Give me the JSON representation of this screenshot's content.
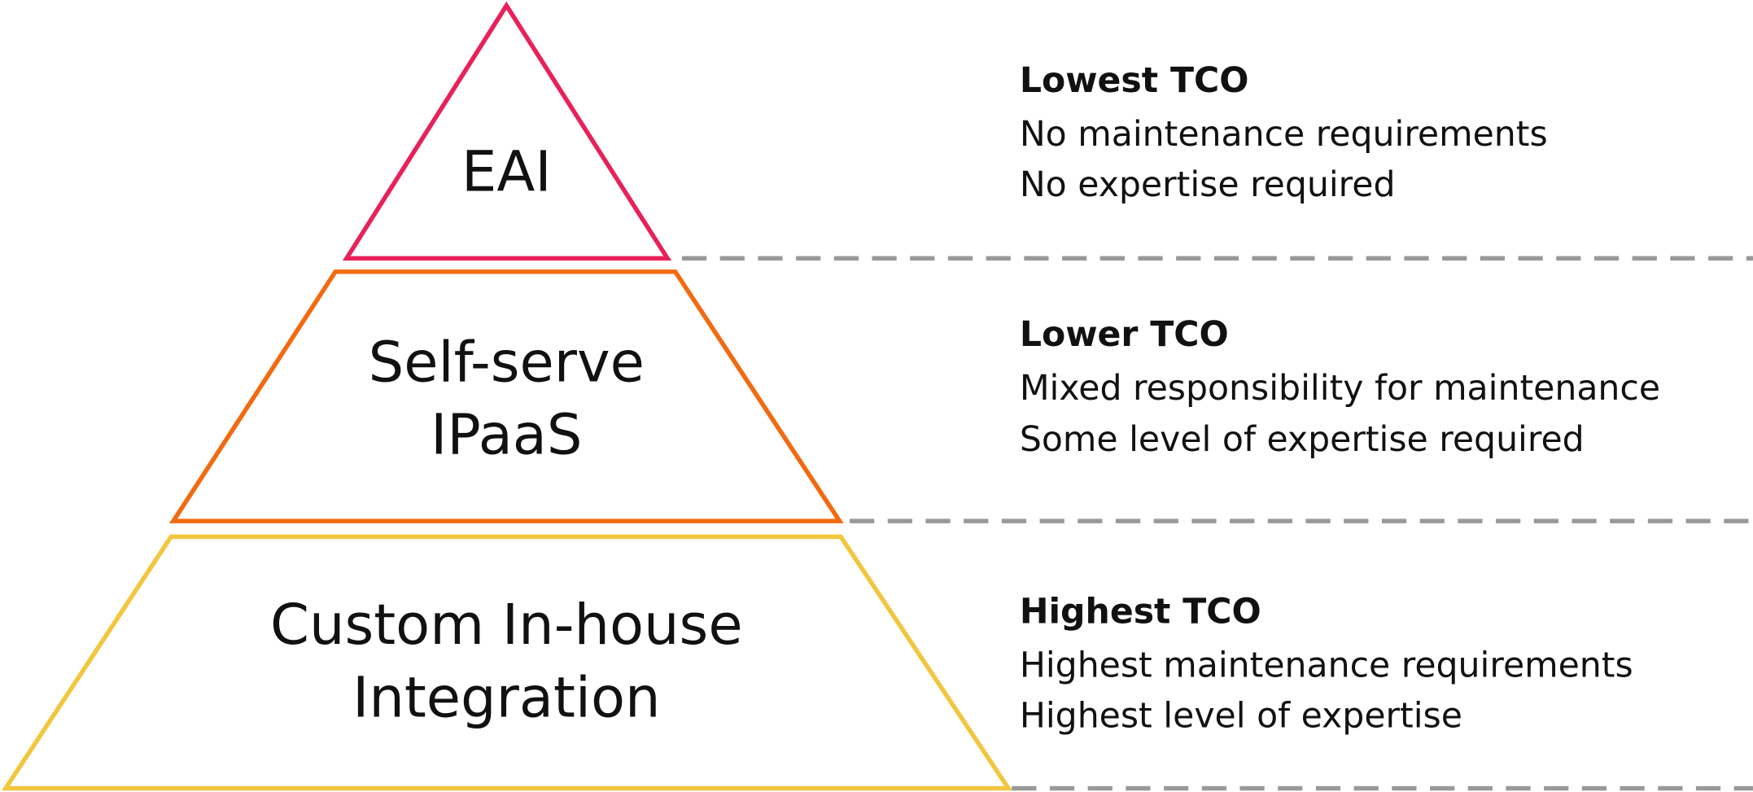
{
  "tiers": [
    {
      "label": [
        "EAI"
      ],
      "title": "Lowest TCO",
      "details": [
        "No maintenance requirements",
        "No expertise required"
      ]
    },
    {
      "label": [
        "Self-serve",
        "IPaaS"
      ],
      "title": "Lower TCO",
      "details": [
        "Mixed responsibility for maintenance",
        "Some level of expertise required"
      ]
    },
    {
      "label": [
        "Custom In-house",
        "Integration"
      ],
      "title": "Highest TCO",
      "details": [
        "Highest maintenance requirements",
        "Highest level of expertise"
      ]
    }
  ]
}
